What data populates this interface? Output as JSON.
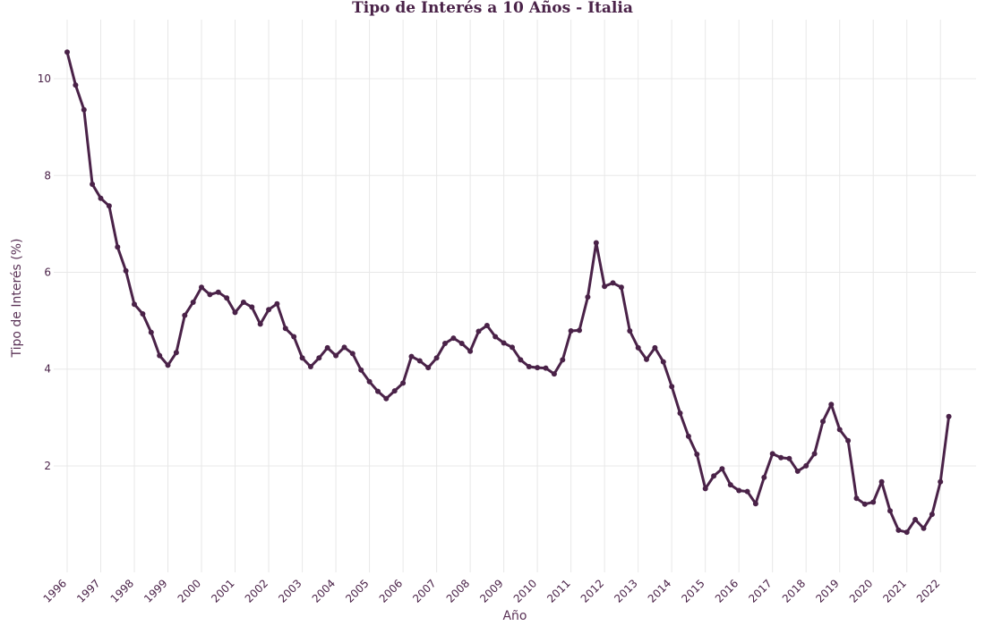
{
  "chart_data": {
    "type": "line",
    "title": "Tipo de Interés a 10 Años - Italia",
    "xlabel": "Año",
    "ylabel": "Tipo de Interés (%)",
    "x_ticks": [
      "1996",
      "1997",
      "1998",
      "1999",
      "2000",
      "2001",
      "2002",
      "2003",
      "2004",
      "2005",
      "2006",
      "2007",
      "2008",
      "2009",
      "2010",
      "2011",
      "2012",
      "2013",
      "2014",
      "2015",
      "2016",
      "2017",
      "2018",
      "2019",
      "2020",
      "2021",
      "2022"
    ],
    "y_ticks": [
      2,
      4,
      6,
      8,
      10
    ],
    "xlim": [
      1995.6,
      2023.06
    ],
    "ylim": [
      -0.2,
      11.22
    ],
    "grid": true,
    "line_color": "#4a2248",
    "series": [
      {
        "x": [
          1996.0,
          1996.25,
          1996.5,
          1996.75,
          1997.0,
          1997.25,
          1997.5,
          1997.75,
          1998.0,
          1998.25,
          1998.5,
          1998.75,
          1999.0,
          1999.25,
          1999.5,
          1999.75,
          2000.0,
          2000.25,
          2000.5,
          2000.75,
          2001.0,
          2001.25,
          2001.5,
          2001.75,
          2002.0,
          2002.25,
          2002.5,
          2002.75,
          2003.0,
          2003.25,
          2003.5,
          2003.75,
          2004.0,
          2004.25,
          2004.5,
          2004.75,
          2005.0,
          2005.25,
          2005.5,
          2005.75,
          2006.0,
          2006.25,
          2006.5,
          2006.75,
          2007.0,
          2007.25,
          2007.5,
          2007.75,
          2008.0,
          2008.25,
          2008.5,
          2008.75,
          2009.0,
          2009.25,
          2009.5,
          2009.75,
          2010.0,
          2010.25,
          2010.5,
          2010.75,
          2011.0,
          2011.25,
          2011.5,
          2011.75,
          2012.0,
          2012.25,
          2012.5,
          2012.75,
          2013.0,
          2013.25,
          2013.5,
          2013.75,
          2014.0,
          2014.25,
          2014.5,
          2014.75,
          2015.0,
          2015.25,
          2015.5,
          2015.75,
          2016.0,
          2016.25,
          2016.5,
          2016.75,
          2017.0,
          2017.25,
          2017.5,
          2017.75,
          2018.0,
          2018.25,
          2018.5,
          2018.75,
          2019.0,
          2019.25,
          2019.5,
          2019.75,
          2020.0,
          2020.25,
          2020.5,
          2020.75,
          2021.0,
          2021.25,
          2021.5,
          2021.75,
          2022.0,
          2022.25
        ],
        "y": [
          10.55,
          9.87,
          9.36,
          7.82,
          7.53,
          7.37,
          6.52,
          6.03,
          5.34,
          5.14,
          4.76,
          4.28,
          4.08,
          4.34,
          5.11,
          5.38,
          5.69,
          5.54,
          5.59,
          5.47,
          5.17,
          5.38,
          5.28,
          4.93,
          5.23,
          5.35,
          4.84,
          4.67,
          4.23,
          4.05,
          4.23,
          4.44,
          4.28,
          4.45,
          4.32,
          3.98,
          3.74,
          3.54,
          3.39,
          3.55,
          3.71,
          4.26,
          4.17,
          4.03,
          4.23,
          4.53,
          4.64,
          4.53,
          4.37,
          4.78,
          4.9,
          4.67,
          4.54,
          4.45,
          4.19,
          4.05,
          4.03,
          4.02,
          3.9,
          4.19,
          4.79,
          4.8,
          5.49,
          6.61,
          5.71,
          5.78,
          5.69,
          4.79,
          4.44,
          4.2,
          4.44,
          4.15,
          3.64,
          3.09,
          2.61,
          2.24,
          1.53,
          1.79,
          1.94,
          1.61,
          1.49,
          1.47,
          1.22,
          1.76,
          2.25,
          2.17,
          2.15,
          1.89,
          2.0,
          2.25,
          2.92,
          3.27,
          2.75,
          2.52,
          1.33,
          1.21,
          1.25,
          1.67,
          1.07,
          0.67,
          0.63,
          0.89,
          0.71,
          1.0,
          1.67,
          3.02
        ]
      }
    ]
  }
}
